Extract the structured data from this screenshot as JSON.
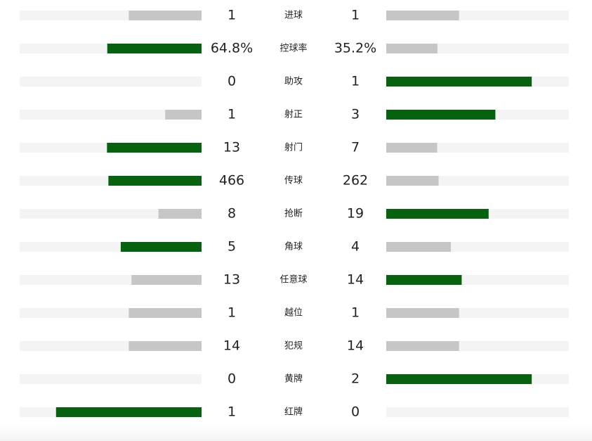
{
  "rows": [
    {
      "label": "进球",
      "home": 1,
      "away": 1
    },
    {
      "label": "控球率",
      "home": 64.8,
      "away": 35.2,
      "home_label": "64.8%",
      "away_label": "35.2%"
    },
    {
      "label": "助攻",
      "home": 0,
      "away": 1
    },
    {
      "label": "射正",
      "home": 1,
      "away": 3
    },
    {
      "label": "射门",
      "home": 13,
      "away": 7
    },
    {
      "label": "传球",
      "home": 466,
      "away": 262
    },
    {
      "label": "抢断",
      "home": 8,
      "away": 19
    },
    {
      "label": "角球",
      "home": 5,
      "away": 4
    },
    {
      "label": "任意球",
      "home": 13,
      "away": 14
    },
    {
      "label": "越位",
      "home": 1,
      "away": 1
    },
    {
      "label": "犯规",
      "home": 14,
      "away": 14
    },
    {
      "label": "黄牌",
      "home": 0,
      "away": 2
    },
    {
      "label": "红牌",
      "home": 1,
      "away": 0
    }
  ],
  "colors": {
    "leader": "#06620f",
    "other": "#c6c6c6",
    "track": "#f4f4f4"
  }
}
